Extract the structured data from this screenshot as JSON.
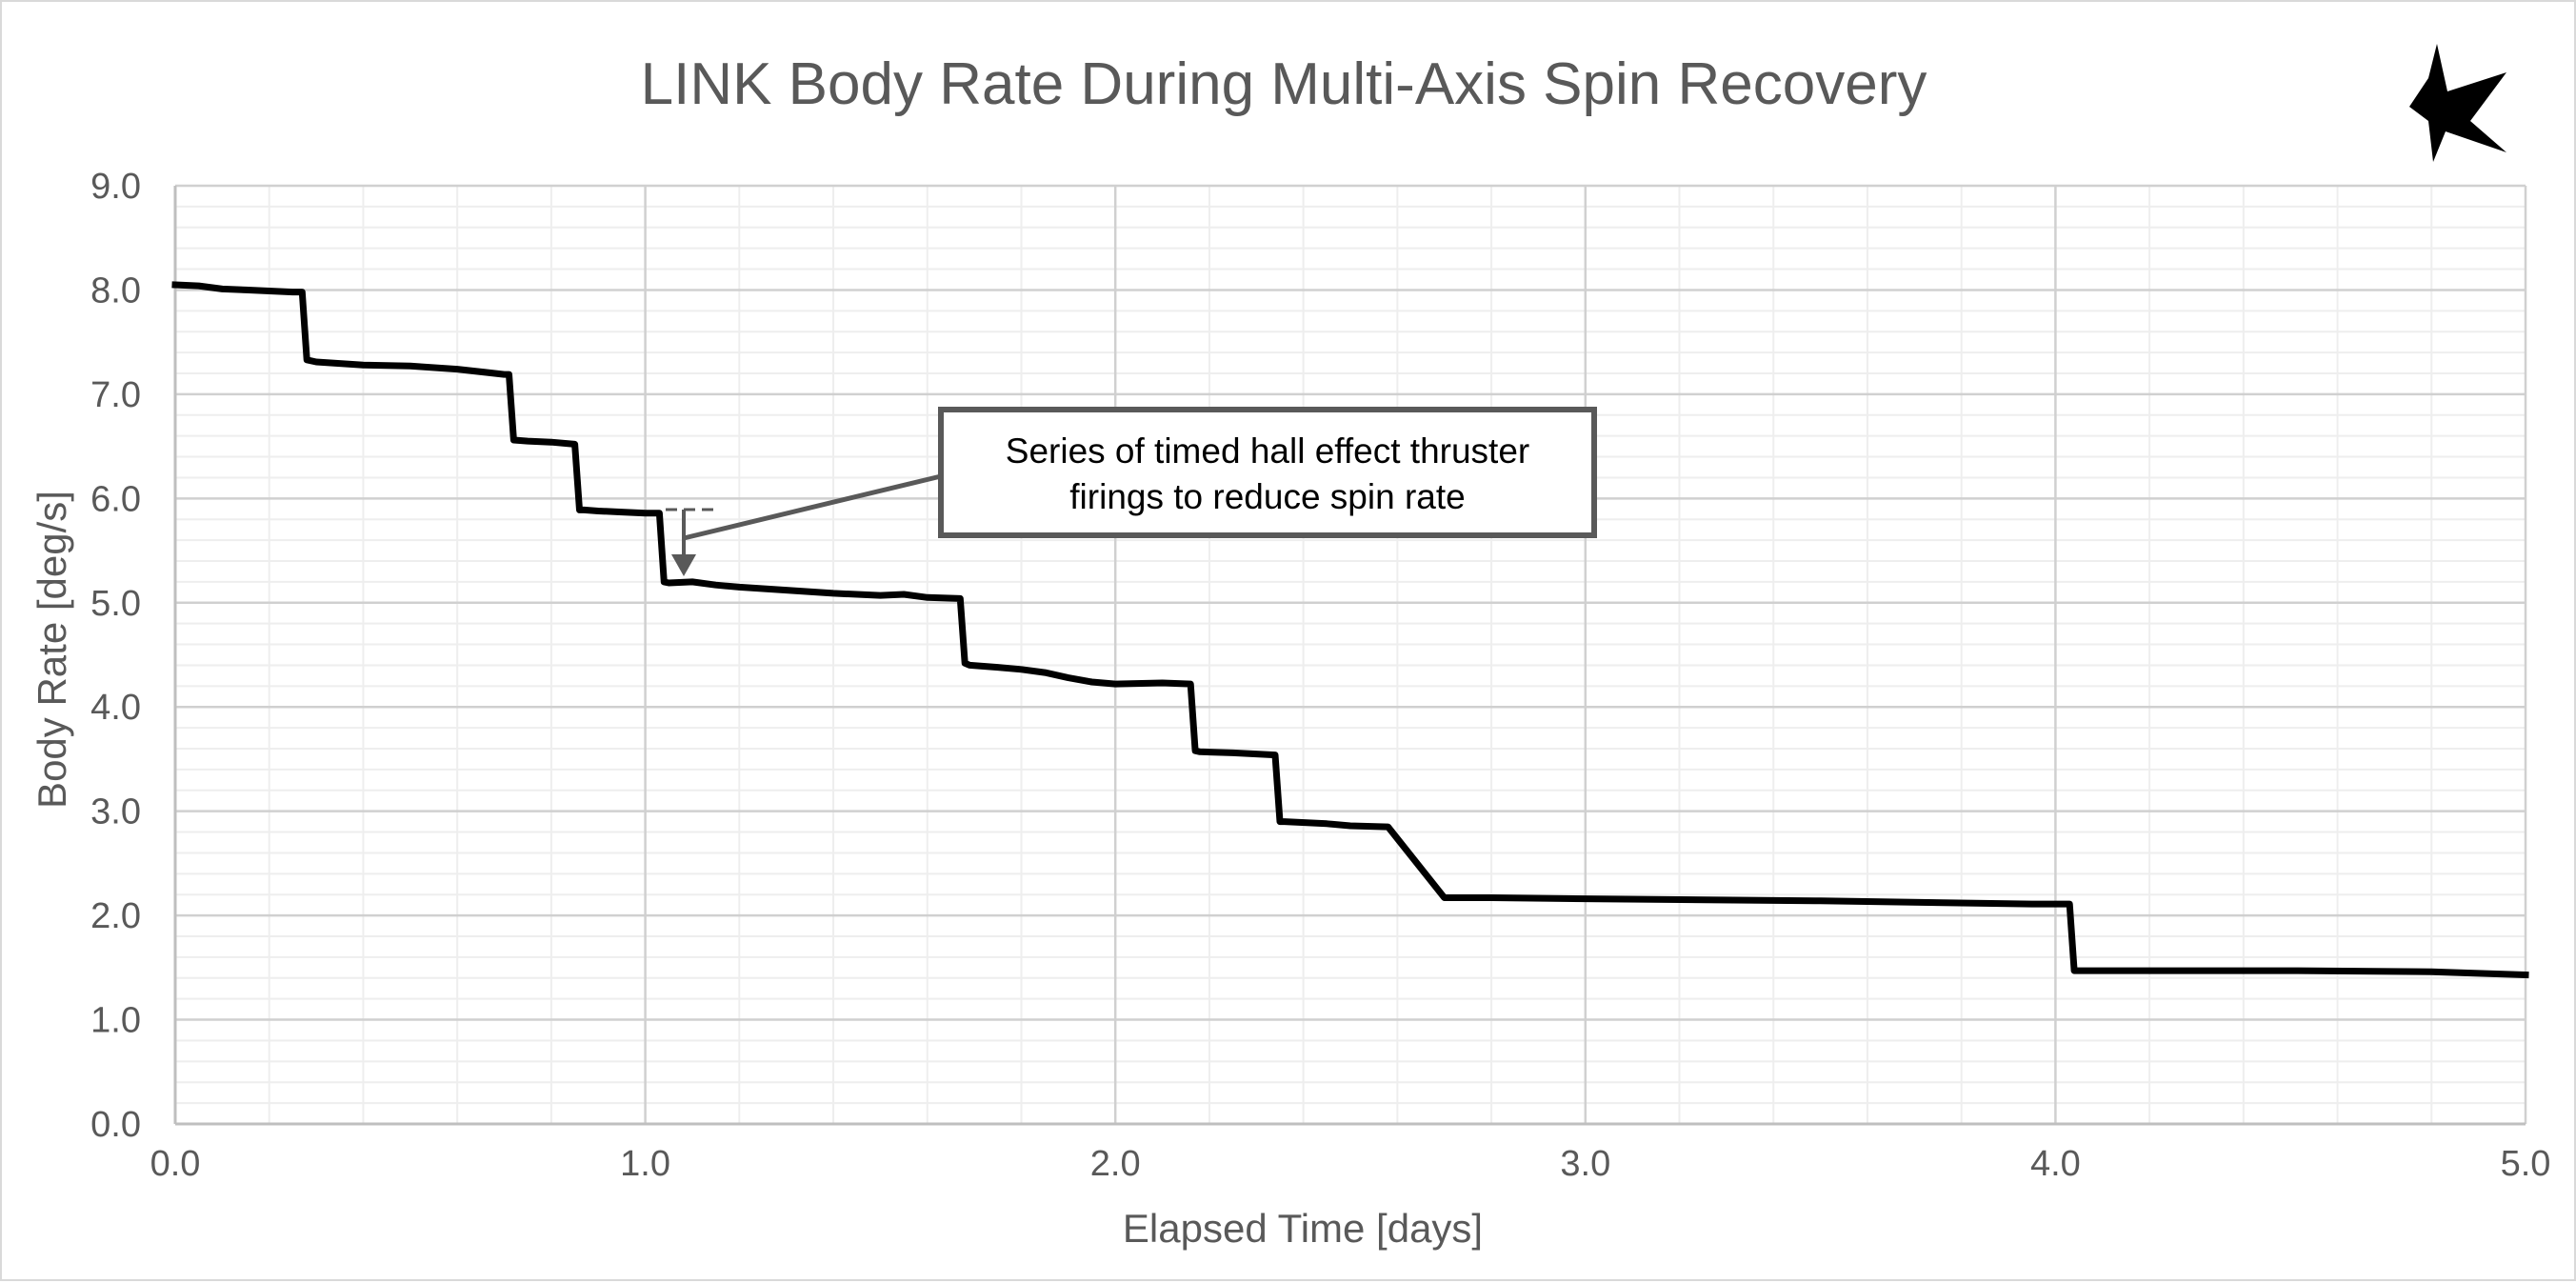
{
  "chart_data": {
    "type": "line",
    "title": "LINK Body Rate During Multi-Axis Spin Recovery",
    "xlabel": "Elapsed Time [days]",
    "ylabel": "Body Rate [deg/s]",
    "xlim": [
      0,
      5
    ],
    "ylim": [
      0,
      9
    ],
    "x_ticks": [
      "0.0",
      "1.0",
      "2.0",
      "3.0",
      "4.0",
      "5.0"
    ],
    "y_ticks": [
      "0.0",
      "1.0",
      "2.0",
      "3.0",
      "4.0",
      "5.0",
      "6.0",
      "7.0",
      "8.0",
      "9.0"
    ],
    "x_minor_step": 0.2,
    "y_minor_step": 0.2,
    "grid": true,
    "legend": "none",
    "series": [
      {
        "x": [
          0.0,
          0.05,
          0.1,
          0.15,
          0.2,
          0.25,
          0.27,
          0.28,
          0.3,
          0.4,
          0.5,
          0.6,
          0.7,
          0.71,
          0.72,
          0.75,
          0.8,
          0.85,
          0.86,
          0.87,
          0.9,
          0.95,
          1.0,
          1.03,
          1.04,
          1.05,
          1.1,
          1.15,
          1.2,
          1.3,
          1.4,
          1.5,
          1.55,
          1.6,
          1.67,
          1.68,
          1.69,
          1.75,
          1.8,
          1.85,
          1.9,
          1.95,
          2.0,
          2.1,
          2.16,
          2.17,
          2.18,
          2.25,
          2.34,
          2.35,
          2.36,
          2.45,
          2.5,
          2.58,
          2.7,
          2.8,
          3.0,
          3.5,
          3.95,
          4.03,
          4.04,
          4.05,
          4.2,
          4.5,
          4.8,
          5.0
        ],
        "y": [
          8.05,
          8.04,
          8.01,
          8.0,
          7.99,
          7.98,
          7.98,
          7.33,
          7.31,
          7.28,
          7.27,
          7.24,
          7.19,
          7.19,
          6.56,
          6.55,
          6.54,
          6.52,
          5.89,
          5.89,
          5.88,
          5.87,
          5.86,
          5.86,
          5.2,
          5.19,
          5.2,
          5.17,
          5.15,
          5.12,
          5.09,
          5.07,
          5.08,
          5.05,
          5.04,
          4.42,
          4.4,
          4.38,
          4.36,
          4.33,
          4.28,
          4.24,
          4.22,
          4.23,
          4.22,
          3.58,
          3.57,
          3.56,
          3.54,
          2.9,
          2.9,
          2.88,
          2.86,
          2.85,
          2.17,
          2.17,
          2.16,
          2.14,
          2.11,
          2.11,
          1.47,
          1.47,
          1.47,
          1.47,
          1.46,
          1.43
        ],
        "color": "#000000"
      }
    ],
    "annotations": [
      {
        "text_lines": [
          "Series of timed hall effect thruster",
          "firings to reduce spin rate"
        ],
        "points_to": [
          1.08,
          5.2
        ]
      }
    ]
  },
  "logo": {
    "icon": "star-logo-icon"
  }
}
